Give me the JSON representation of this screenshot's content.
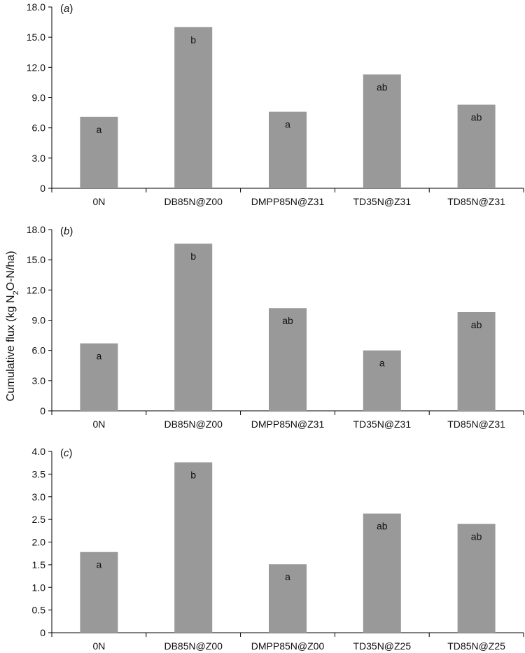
{
  "ylabel_parts": [
    "Cumulative flux (kg N",
    "2",
    "O-N/ha)"
  ],
  "chart_data": [
    {
      "type": "bar",
      "panel_label": "a",
      "categories": [
        "0N",
        "DB85N@Z00",
        "DMPP85N@Z31",
        "TD35N@Z31",
        "TD85N@Z31"
      ],
      "values": [
        7.1,
        16.0,
        7.6,
        11.3,
        8.3
      ],
      "bar_labels": [
        "a",
        "b",
        "a",
        "ab",
        "ab"
      ],
      "ylim": [
        0,
        18
      ],
      "yticks": [
        "0",
        "3.0",
        "6.0",
        "9.0",
        "12.0",
        "15.0",
        "18.0"
      ],
      "bar_color": "#999999",
      "grid": false
    },
    {
      "type": "bar",
      "panel_label": "b",
      "categories": [
        "0N",
        "DB85N@Z00",
        "DMPP85N@Z31",
        "TD35N@Z31",
        "TD85N@Z31"
      ],
      "values": [
        6.7,
        16.6,
        10.2,
        6.0,
        9.8
      ],
      "bar_labels": [
        "a",
        "b",
        "ab",
        "a",
        "ab"
      ],
      "ylim": [
        0,
        18
      ],
      "yticks": [
        "0",
        "3.0",
        "6.0",
        "9.0",
        "12.0",
        "15.0",
        "18.0"
      ],
      "bar_color": "#999999",
      "grid": false
    },
    {
      "type": "bar",
      "panel_label": "c",
      "categories": [
        "0N",
        "DB85N@Z00",
        "DMPP85N@Z00",
        "TD35N@Z25",
        "TD85N@Z25"
      ],
      "values": [
        1.78,
        3.76,
        1.51,
        2.63,
        2.4
      ],
      "bar_labels": [
        "a",
        "b",
        "a",
        "ab",
        "ab"
      ],
      "ylim": [
        0,
        4
      ],
      "yticks": [
        "0",
        "0.5",
        "1.0",
        "1.5",
        "2.0",
        "2.5",
        "3.0",
        "3.5",
        "4.0"
      ],
      "bar_color": "#999999",
      "grid": false
    }
  ]
}
